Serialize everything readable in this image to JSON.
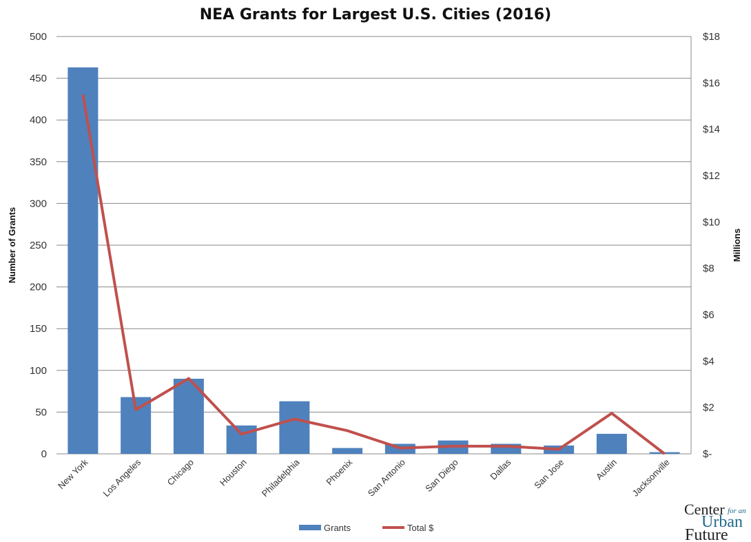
{
  "chart_data": {
    "type": "bar+line",
    "title": "NEA Grants for Largest U.S. Cities (2016)",
    "categories": [
      "New York",
      "Los Angeles",
      "Chicago",
      "Houston",
      "Philadelphia",
      "Phoenix",
      "San Antonio",
      "San Diego",
      "Dallas",
      "San Jose",
      "Austin",
      "Jacksonville"
    ],
    "series": [
      {
        "name": "Grants",
        "type": "bar",
        "axis": "left",
        "color": "#4f81bd",
        "values": [
          463,
          68,
          90,
          34,
          63,
          7,
          12,
          16,
          12,
          10,
          24,
          2
        ]
      },
      {
        "name": "Total $",
        "type": "line",
        "axis": "right",
        "color": "#c0504d",
        "values": [
          15.5,
          1.9,
          3.25,
          0.85,
          1.5,
          1.0,
          0.25,
          0.33,
          0.33,
          0.2,
          1.75,
          0
        ]
      }
    ],
    "ylabel": "Number of Grants",
    "ylim": [
      0,
      500
    ],
    "yticks": [
      "0",
      "50",
      "100",
      "150",
      "200",
      "250",
      "300",
      "350",
      "400",
      "450",
      "500"
    ],
    "y2label": "Millions",
    "y2lim": [
      0,
      18
    ],
    "y2ticks": [
      "$-",
      "$2",
      "$4",
      "$6",
      "$8",
      "$10",
      "$12",
      "$14",
      "$16",
      "$18"
    ],
    "grid": true,
    "legend": "bottom"
  },
  "logo": {
    "line1": "Center",
    "line1b": "for an",
    "line2": "Urban",
    "line3": "Future"
  }
}
